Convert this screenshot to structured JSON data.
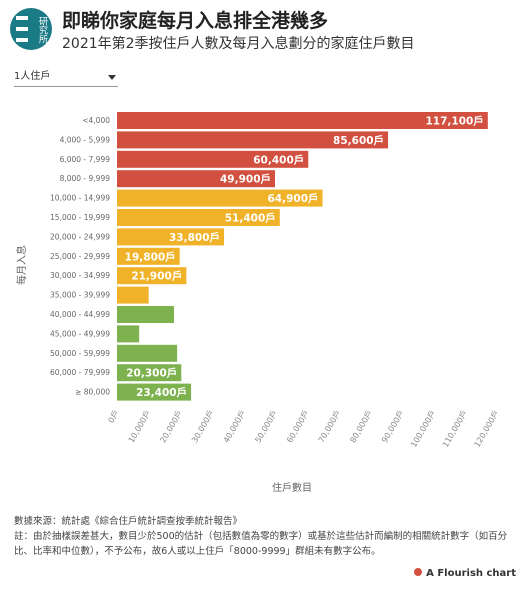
{
  "logo_text": "研究所",
  "title": "即睇你家庭每月入息排全港幾多",
  "subtitle": "2021年第2季按住戶人數及每月入息劃分的家庭住戶數目",
  "dropdown": "1人住戶",
  "chart_data": {
    "type": "hbar",
    "y_label": "每月入息",
    "x_label": "住戶數目",
    "categories": [
      "<4,000",
      "4,000 - 5,999",
      "6,000 - 7,999",
      "8,000 - 9,999",
      "10,000 - 14,999",
      "15,000 - 19,999",
      "20,000 - 24,999",
      "25,000 - 29,999",
      "30,000 - 34,999",
      "35,000 - 39,999",
      "40,000 - 44,999",
      "45,000 - 49,999",
      "50,000 - 59,999",
      "60,000 - 79,999",
      "≥ 80,000"
    ],
    "values": [
      117100,
      85600,
      60400,
      49900,
      64900,
      51400,
      33800,
      19800,
      21900,
      10000,
      18000,
      7000,
      19000,
      20300,
      23400
    ],
    "value_labels": [
      "117,100戶",
      "85,600戶",
      "60,400戶",
      "49,900戶",
      "64,900戶",
      "51,400戶",
      "33,800戶",
      "19,800戶",
      "21,900戶",
      null,
      null,
      null,
      null,
      "20,300戶",
      "23,400戶"
    ],
    "colors": [
      "#d2503f",
      "#d2503f",
      "#d2503f",
      "#d2503f",
      "#efb229",
      "#efb229",
      "#efb229",
      "#efb229",
      "#efb229",
      "#efb229",
      "#7eb24f",
      "#7eb24f",
      "#7eb24f",
      "#7eb24f",
      "#7eb24f"
    ],
    "xlim": [
      0,
      120000
    ],
    "xticks": [
      {
        "value": 0,
        "label": "0戶"
      },
      {
        "value": 10000,
        "label": "10,000戶"
      },
      {
        "value": 20000,
        "label": "20,000戶"
      },
      {
        "value": 30000,
        "label": "30,000戶"
      },
      {
        "value": 40000,
        "label": "40,000戶"
      },
      {
        "value": 50000,
        "label": "50,000戶"
      },
      {
        "value": 60000,
        "label": "60,000戶"
      },
      {
        "value": 70000,
        "label": "70,000戶"
      },
      {
        "value": 80000,
        "label": "80,000戶"
      },
      {
        "value": 90000,
        "label": "90,000戶"
      },
      {
        "value": 100000,
        "label": "100,000戶"
      },
      {
        "value": 110000,
        "label": "110,000戶"
      },
      {
        "value": 120000,
        "label": "120,000戶"
      }
    ],
    "grid": false
  },
  "source": "數據來源：統計處《綜合住戶統計調查按季統計報告》",
  "note": "註：由於抽樣誤差甚大，數目少於500的估計（包括數值為零的數字）或基於這些估計而編制的相關統計數字（如百分比、比率和中位數），不予公布，故6人或以上住戶「8000-9999」群組未有數字公布。",
  "credit": "A Flourish chart"
}
